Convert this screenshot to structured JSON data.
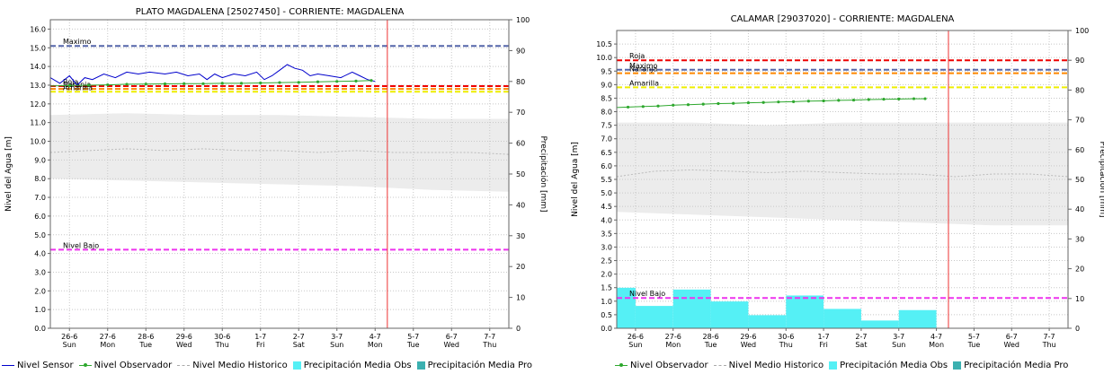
{
  "legends": [
    {
      "items": [
        {
          "label": "Nivel Sensor",
          "swatch": "line",
          "color": "#0000cc"
        },
        {
          "label": "Nivel Observador",
          "swatch": "dot",
          "color": "#2ea82e"
        },
        {
          "label": "Nivel Medio Historico",
          "swatch": "dash",
          "color": "#aaaaaa"
        },
        {
          "label": "Precipitación Media Obs",
          "swatch": "box",
          "color": "#55f0f5"
        },
        {
          "label": "Precipitación Media Pro",
          "swatch": "box",
          "color": "#3bb0b0"
        }
      ]
    },
    {
      "items": [
        {
          "label": "Nivel Observador",
          "swatch": "dot",
          "color": "#2ea82e"
        },
        {
          "label": "Nivel Medio Historico",
          "swatch": "dash",
          "color": "#aaaaaa"
        },
        {
          "label": "Precipitación Media Obs",
          "swatch": "box",
          "color": "#55f0f5"
        },
        {
          "label": "Precipitación Media Pro",
          "swatch": "box",
          "color": "#3bb0b0"
        }
      ]
    }
  ],
  "chart_data": [
    {
      "type": "line",
      "title": "PLATO MAGDALENA   [25027450] - CORRIENTE: MAGDALENA",
      "ylabel": "Nivel del Agua [m]",
      "y2label": "Precipitación [mm]",
      "ylim": [
        0,
        16.5
      ],
      "y2lim": [
        0,
        100
      ],
      "yticks": [
        "0.0",
        "1.0",
        "2.0",
        "3.0",
        "4.0",
        "5.0",
        "6.0",
        "7.0",
        "8.0",
        "9.0",
        "10.0",
        "11.0",
        "12.0",
        "13.0",
        "14.0",
        "15.0",
        "16.0"
      ],
      "y2ticks": [
        "0",
        "10",
        "20",
        "30",
        "40",
        "50",
        "60",
        "70",
        "80",
        "90",
        "100"
      ],
      "xlim": [
        0,
        12
      ],
      "x_categories": [
        {
          "date": "26-6",
          "day": "Sun"
        },
        {
          "date": "27-6",
          "day": "Mon"
        },
        {
          "date": "28-6",
          "day": "Tue"
        },
        {
          "date": "29-6",
          "day": "Wed"
        },
        {
          "date": "30-6",
          "day": "Thu"
        },
        {
          "date": "1-7",
          "day": "Fri"
        },
        {
          "date": "2-7",
          "day": "Sat"
        },
        {
          "date": "3-7",
          "day": "Sun"
        },
        {
          "date": "4-7",
          "day": "Mon"
        },
        {
          "date": "5-7",
          "day": "Tue"
        },
        {
          "date": "6-7",
          "day": "Wed"
        },
        {
          "date": "7-7",
          "day": "Thu"
        }
      ],
      "now_x": 8.82,
      "thresholds": [
        {
          "label": "Maximo",
          "value": 15.1,
          "color": "#5566aa"
        },
        {
          "label": "Roja",
          "value": 12.95,
          "color": "#ee0000"
        },
        {
          "label": "Naranja",
          "value": 12.8,
          "color": "#ff8800"
        },
        {
          "label": "Amarilla",
          "value": 12.65,
          "color": "#eeee00"
        },
        {
          "label": "Nivel Bajo",
          "value": 4.2,
          "color": "#ee33ee"
        }
      ],
      "historic_band": [
        [
          0,
          8.0,
          11.4
        ],
        [
          2,
          7.9,
          11.5
        ],
        [
          4,
          7.8,
          11.4
        ],
        [
          6,
          7.7,
          11.4
        ],
        [
          8,
          7.6,
          11.3
        ],
        [
          10,
          7.4,
          11.2
        ],
        [
          12,
          7.3,
          11.2
        ]
      ],
      "historic_mean": [
        [
          0,
          9.4
        ],
        [
          1,
          9.5
        ],
        [
          2,
          9.6
        ],
        [
          3,
          9.5
        ],
        [
          4,
          9.6
        ],
        [
          5,
          9.5
        ],
        [
          6,
          9.5
        ],
        [
          7,
          9.4
        ],
        [
          8,
          9.5
        ],
        [
          9,
          9.4
        ],
        [
          10,
          9.4
        ],
        [
          11,
          9.4
        ],
        [
          12,
          9.3
        ]
      ],
      "series": [
        {
          "name": "Nivel Sensor",
          "color": "#0000cc",
          "kind": "sensor",
          "points": [
            [
              -0.2,
              13.2
            ],
            [
              0.0,
              13.4
            ],
            [
              0.25,
              13.1
            ],
            [
              0.5,
              13.5
            ],
            [
              0.7,
              13.0
            ],
            [
              0.9,
              13.4
            ],
            [
              1.1,
              13.3
            ],
            [
              1.4,
              13.6
            ],
            [
              1.7,
              13.4
            ],
            [
              2.0,
              13.7
            ],
            [
              2.3,
              13.6
            ],
            [
              2.6,
              13.7
            ],
            [
              3.0,
              13.6
            ],
            [
              3.3,
              13.7
            ],
            [
              3.6,
              13.5
            ],
            [
              3.9,
              13.6
            ],
            [
              4.1,
              13.3
            ],
            [
              4.3,
              13.6
            ],
            [
              4.5,
              13.4
            ],
            [
              4.8,
              13.6
            ],
            [
              5.1,
              13.5
            ],
            [
              5.4,
              13.7
            ],
            [
              5.6,
              13.3
            ],
            [
              5.8,
              13.5
            ],
            [
              6.0,
              13.8
            ],
            [
              6.2,
              14.1
            ],
            [
              6.4,
              13.9
            ],
            [
              6.6,
              13.8
            ],
            [
              6.8,
              13.5
            ],
            [
              7.0,
              13.6
            ],
            [
              7.3,
              13.5
            ],
            [
              7.6,
              13.4
            ],
            [
              7.9,
              13.7
            ],
            [
              8.1,
              13.5
            ],
            [
              8.3,
              13.3
            ],
            [
              8.5,
              13.2
            ]
          ]
        },
        {
          "name": "Nivel Observador",
          "color": "#2ea82e",
          "kind": "observer",
          "points": [
            [
              -0.1,
              12.95
            ],
            [
              0.5,
              12.98
            ],
            [
              1.0,
              13.0
            ],
            [
              1.5,
              13.02
            ],
            [
              2.0,
              13.05
            ],
            [
              2.5,
              13.06
            ],
            [
              3.0,
              13.07
            ],
            [
              3.5,
              13.08
            ],
            [
              4.0,
              13.08
            ],
            [
              4.5,
              13.1
            ],
            [
              5.0,
              13.1
            ],
            [
              5.5,
              13.12
            ],
            [
              6.0,
              13.14
            ],
            [
              6.5,
              13.15
            ],
            [
              7.0,
              13.18
            ],
            [
              7.5,
              13.2
            ],
            [
              8.0,
              13.22
            ],
            [
              8.4,
              13.25
            ]
          ]
        }
      ],
      "precip_bars": []
    },
    {
      "type": "line",
      "title": "CALAMAR [29037020] - CORRIENTE: MAGDALENA",
      "ylabel": "Nivel del Agua [m]",
      "y2label": "Precipitación [mm]",
      "ylim": [
        0,
        11
      ],
      "y2lim": [
        0,
        100
      ],
      "yticks": [
        "0.0",
        "0.5",
        "1.0",
        "1.5",
        "2.0",
        "2.5",
        "3.0",
        "3.5",
        "4.0",
        "4.5",
        "5.0",
        "5.5",
        "6.0",
        "6.5",
        "7.0",
        "7.5",
        "8.0",
        "8.5",
        "9.0",
        "9.5",
        "10.0",
        "10.5"
      ],
      "y2ticks": [
        "0",
        "10",
        "20",
        "30",
        "40",
        "50",
        "60",
        "70",
        "80",
        "90",
        "100"
      ],
      "xlim": [
        0,
        12
      ],
      "x_categories": [
        {
          "date": "26-6",
          "day": "Sun"
        },
        {
          "date": "27-6",
          "day": "Mon"
        },
        {
          "date": "28-6",
          "day": "Tue"
        },
        {
          "date": "29-6",
          "day": "Wed"
        },
        {
          "date": "30-6",
          "day": "Thu"
        },
        {
          "date": "1-7",
          "day": "Fri"
        },
        {
          "date": "2-7",
          "day": "Sat"
        },
        {
          "date": "3-7",
          "day": "Sun"
        },
        {
          "date": "4-7",
          "day": "Mon"
        },
        {
          "date": "5-7",
          "day": "Tue"
        },
        {
          "date": "6-7",
          "day": "Wed"
        },
        {
          "date": "7-7",
          "day": "Thu"
        }
      ],
      "now_x": 8.82,
      "thresholds": [
        {
          "label": "Roja",
          "value": 9.9,
          "color": "#ee0000"
        },
        {
          "label": "Maximo",
          "value": 9.55,
          "color": "#5566aa"
        },
        {
          "label": "Naranja",
          "value": 9.42,
          "color": "#ff8800"
        },
        {
          "label": "Amarilla",
          "value": 8.9,
          "color": "#eeee00"
        },
        {
          "label": "Nivel Bajo",
          "value": 1.12,
          "color": "#ee33ee"
        }
      ],
      "historic_band": [
        [
          0,
          4.3,
          7.6
        ],
        [
          2,
          4.2,
          7.6
        ],
        [
          4,
          4.1,
          7.5
        ],
        [
          6,
          4.0,
          7.6
        ],
        [
          8,
          3.9,
          7.6
        ],
        [
          10,
          3.8,
          7.6
        ],
        [
          12,
          3.8,
          7.6
        ]
      ],
      "historic_mean": [
        [
          0,
          5.6
        ],
        [
          1,
          5.8
        ],
        [
          2,
          5.85
        ],
        [
          3,
          5.8
        ],
        [
          4,
          5.75
        ],
        [
          5,
          5.8
        ],
        [
          6,
          5.75
        ],
        [
          7,
          5.7
        ],
        [
          8,
          5.7
        ],
        [
          9,
          5.6
        ],
        [
          10,
          5.7
        ],
        [
          11,
          5.7
        ],
        [
          12,
          5.6
        ]
      ],
      "series": [
        {
          "name": "Nivel Observador",
          "color": "#2ea82e",
          "kind": "observer",
          "points": [
            [
              -0.1,
              8.15
            ],
            [
              0.3,
              8.17
            ],
            [
              0.7,
              8.19
            ],
            [
              1.1,
              8.21
            ],
            [
              1.5,
              8.24
            ],
            [
              1.9,
              8.26
            ],
            [
              2.3,
              8.28
            ],
            [
              2.7,
              8.3
            ],
            [
              3.1,
              8.31
            ],
            [
              3.5,
              8.33
            ],
            [
              3.9,
              8.34
            ],
            [
              4.3,
              8.36
            ],
            [
              4.7,
              8.37
            ],
            [
              5.1,
              8.39
            ],
            [
              5.5,
              8.4
            ],
            [
              5.9,
              8.42
            ],
            [
              6.3,
              8.43
            ],
            [
              6.7,
              8.45
            ],
            [
              7.1,
              8.46
            ],
            [
              7.5,
              8.47
            ],
            [
              7.9,
              8.48
            ],
            [
              8.2,
              8.48
            ]
          ]
        }
      ],
      "precip_bars": [
        {
          "x0": -0.5,
          "x1": 0.0,
          "value": 13.6
        },
        {
          "x0": 0.0,
          "x1": 0.5,
          "value": 13.6
        },
        {
          "x0": 0.5,
          "x1": 1.5,
          "value": 7.5
        },
        {
          "x0": 1.5,
          "x1": 2.5,
          "value": 13.0
        },
        {
          "x0": 2.5,
          "x1": 3.5,
          "value": 9.0
        },
        {
          "x0": 3.5,
          "x1": 4.5,
          "value": 4.4
        },
        {
          "x0": 4.5,
          "x1": 5.5,
          "value": 11.0
        },
        {
          "x0": 5.5,
          "x1": 6.5,
          "value": 6.5
        },
        {
          "x0": 6.5,
          "x1": 7.5,
          "value": 2.6
        },
        {
          "x0": 7.5,
          "x1": 8.5,
          "value": 6.1
        }
      ]
    }
  ]
}
